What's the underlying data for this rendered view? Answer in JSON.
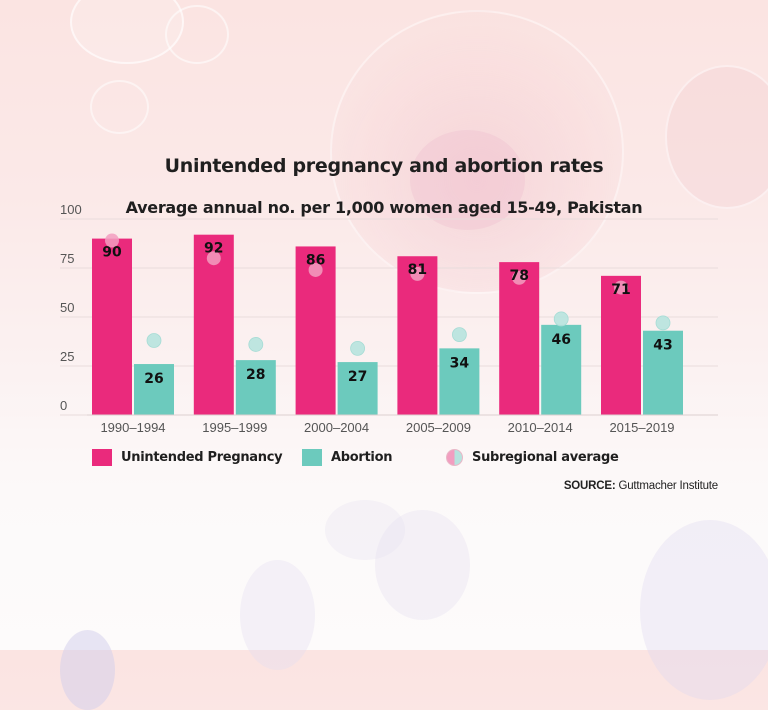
{
  "chart_data": {
    "type": "bar",
    "title": "Unintended pregnancy and abortion rates",
    "subtitle": "Average annual no. per 1,000 women aged 15-49, Pakistan",
    "xlabel": "",
    "ylabel": "",
    "ylim": [
      0,
      100
    ],
    "yticks": [
      0,
      25,
      50,
      75,
      100
    ],
    "grid": true,
    "categories": [
      "1990–1994",
      "1995–1999",
      "2000–2004",
      "2005–2009",
      "2010–2014",
      "2015–2019"
    ],
    "series": [
      {
        "name": "Unintended Pregnancy",
        "values": [
          90,
          92,
          86,
          81,
          78,
          71
        ],
        "color": "#ea2a7c"
      },
      {
        "name": "Abortion",
        "values": [
          26,
          28,
          27,
          34,
          46,
          43
        ],
        "color": "#6ccabd"
      }
    ],
    "markers": [
      {
        "name": "Subregional average (unintended pregnancy)",
        "values": [
          89,
          80,
          74,
          72,
          70,
          65
        ],
        "color": "#f29ec0"
      },
      {
        "name": "Subregional average (abortion)",
        "values": [
          38,
          36,
          34,
          41,
          49,
          47
        ],
        "color": "#b7e3de"
      }
    ],
    "legend": {
      "position": "bottom",
      "items": [
        {
          "label": "Unintended Pregnancy",
          "icon": "pink-square"
        },
        {
          "label": "Abortion",
          "icon": "teal-square"
        },
        {
          "label": "Subregional average",
          "icon": "half-pink-half-teal-circle"
        }
      ]
    },
    "source_label": "SOURCE:",
    "source_text": "Guttmacher Institute"
  }
}
